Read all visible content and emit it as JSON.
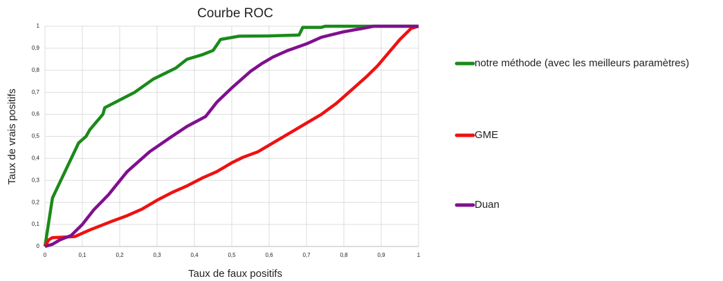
{
  "chart_data": {
    "type": "line",
    "title": "Courbe ROC",
    "x_label": "Taux de faux positifs",
    "y_label": "Taux de vrais positifs",
    "xlim": [
      0,
      1
    ],
    "ylim": [
      0,
      1
    ],
    "xticks": [
      0,
      {
        "value": 0.1,
        "label": "0,1"
      },
      {
        "value": 0.2,
        "label": "0,2"
      },
      {
        "value": 0.3,
        "label": "0,3"
      },
      {
        "value": 0.4,
        "label": "0,4"
      },
      {
        "value": 0.5,
        "label": "0,5"
      },
      {
        "value": 0.6,
        "label": "0,6"
      },
      {
        "value": 0.7,
        "label": "0,7"
      },
      {
        "value": 0.8,
        "label": "0,8"
      },
      {
        "value": 0.9,
        "label": "0,9"
      },
      1
    ],
    "yticks": [
      0,
      {
        "value": 0.1,
        "label": "0,1"
      },
      {
        "value": 0.2,
        "label": "0,2"
      },
      {
        "value": 0.3,
        "label": "0,3"
      },
      {
        "value": 0.4,
        "label": "0,4"
      },
      {
        "value": 0.5,
        "label": "0,5"
      },
      {
        "value": 0.6,
        "label": "0,6"
      },
      {
        "value": 0.7,
        "label": "0,7"
      },
      {
        "value": 0.8,
        "label": "0,8"
      },
      {
        "value": 0.9,
        "label": "0,9"
      },
      1
    ],
    "grid": true,
    "legend": "right",
    "series": [
      {
        "name": "notre méthode (avec les meilleurs paramètres)",
        "color": "#1a8a1a",
        "x": [
          0,
          0.02,
          0.09,
          0.11,
          0.12,
          0.155,
          0.16,
          0.24,
          0.29,
          0.35,
          0.38,
          0.42,
          0.45,
          0.47,
          0.52,
          0.6,
          0.68,
          0.69,
          0.74,
          0.75,
          1
        ],
        "values": [
          0,
          0.22,
          0.47,
          0.5,
          0.53,
          0.6,
          0.63,
          0.7,
          0.76,
          0.81,
          0.85,
          0.87,
          0.89,
          0.94,
          0.955,
          0.956,
          0.96,
          0.995,
          0.995,
          1,
          1
        ]
      },
      {
        "name": "GME",
        "color": "#ee1111",
        "x": [
          0,
          0.01,
          0.02,
          0.08,
          0.1,
          0.12,
          0.15,
          0.18,
          0.22,
          0.26,
          0.3,
          0.34,
          0.38,
          0.42,
          0.46,
          0.5,
          0.53,
          0.57,
          0.61,
          0.65,
          0.7,
          0.74,
          0.78,
          0.82,
          0.86,
          0.89,
          0.92,
          0.95,
          0.98,
          1
        ],
        "values": [
          0,
          0.03,
          0.04,
          0.045,
          0.06,
          0.075,
          0.095,
          0.115,
          0.14,
          0.17,
          0.21,
          0.245,
          0.275,
          0.31,
          0.34,
          0.38,
          0.405,
          0.43,
          0.47,
          0.51,
          0.56,
          0.6,
          0.65,
          0.71,
          0.77,
          0.82,
          0.88,
          0.94,
          0.99,
          1
        ]
      },
      {
        "name": "Duan",
        "color": "#800f8f",
        "x": [
          0,
          0.02,
          0.04,
          0.07,
          0.1,
          0.13,
          0.17,
          0.22,
          0.28,
          0.34,
          0.38,
          0.43,
          0.46,
          0.5,
          0.55,
          0.58,
          0.61,
          0.65,
          0.7,
          0.74,
          0.8,
          0.85,
          0.88,
          1
        ],
        "values": [
          0,
          0.01,
          0.03,
          0.05,
          0.1,
          0.165,
          0.235,
          0.34,
          0.43,
          0.5,
          0.545,
          0.59,
          0.655,
          0.72,
          0.795,
          0.83,
          0.86,
          0.89,
          0.92,
          0.95,
          0.975,
          0.99,
          1,
          1
        ]
      }
    ]
  }
}
